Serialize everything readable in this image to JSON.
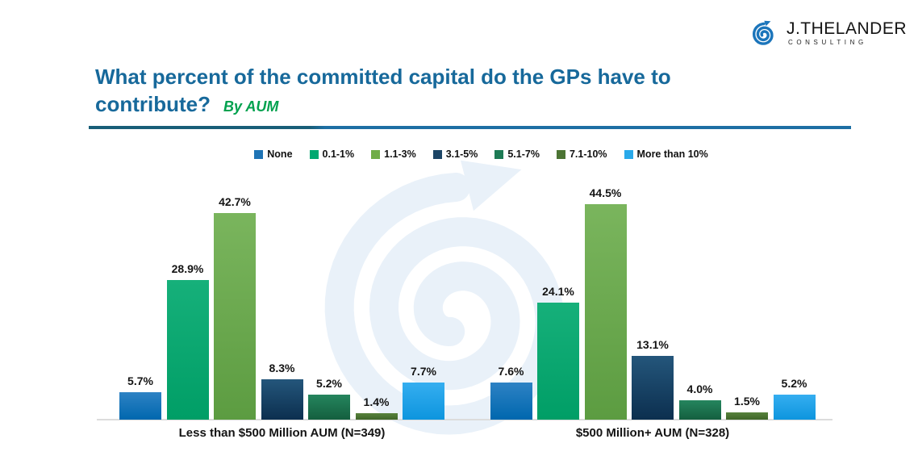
{
  "brand": {
    "name": "J.THELANDER",
    "subtitle": "CONSULTING",
    "icon": "spiral-arrow-icon",
    "logo_color": "#1B75BB"
  },
  "title": {
    "line1": "What percent of the committed capital do the GPs have to",
    "line2": "contribute?",
    "tag": "By AUM"
  },
  "chart_data": {
    "type": "bar",
    "title": "What percent of the committed capital do the GPs have to contribute? By AUM",
    "categories": [
      "Less than $500 Million AUM (N=349)",
      "$500 Million+ AUM (N=328)"
    ],
    "series": [
      {
        "name": "None",
        "values": [
          5.7,
          7.6
        ],
        "color": "#1F74B5",
        "gradient": [
          "#2E82C4",
          "#0067AE"
        ]
      },
      {
        "name": "0.1-1%",
        "values": [
          28.9,
          24.1
        ],
        "color": "#00A870",
        "gradient": [
          "#16B07A",
          "#009E66"
        ]
      },
      {
        "name": "1.1-3%",
        "values": [
          42.7,
          44.5
        ],
        "color": "#70AD47",
        "gradient": [
          "#7AB55D",
          "#5C9C41"
        ]
      },
      {
        "name": "3.1-5%",
        "values": [
          8.3,
          13.1
        ],
        "color": "#1C4566",
        "gradient": [
          "#24567B",
          "#0C2F4F"
        ]
      },
      {
        "name": "5.1-7%",
        "values": [
          5.2,
          4.0
        ],
        "color": "#1E7B55",
        "gradient": [
          "#25855E",
          "#145F3F"
        ]
      },
      {
        "name": "7.1-10%",
        "values": [
          1.4,
          1.5
        ],
        "color": "#4C7434",
        "gradient": [
          "#57823C",
          "#3F6629"
        ]
      },
      {
        "name": "More than 10%",
        "values": [
          7.7,
          5.2
        ],
        "color": "#29A9EA",
        "gradient": [
          "#35AEF0",
          "#0D95DE"
        ]
      }
    ],
    "value_suffix": "%",
    "value_decimals": 1,
    "ylim": [
      0,
      50
    ],
    "grid": false,
    "axis_labels_visible": false,
    "value_labels": true,
    "legend_position": "top"
  },
  "colors": {
    "title": "#17699B",
    "subtitle_green": "#00A14E",
    "divider_left": "#185E78",
    "divider_right": "#1D6FA4",
    "watermark": "#E9F1F9",
    "baseline": "#DCDCDC",
    "logo_blue": "#1B75BB",
    "label_text": "#141414"
  }
}
